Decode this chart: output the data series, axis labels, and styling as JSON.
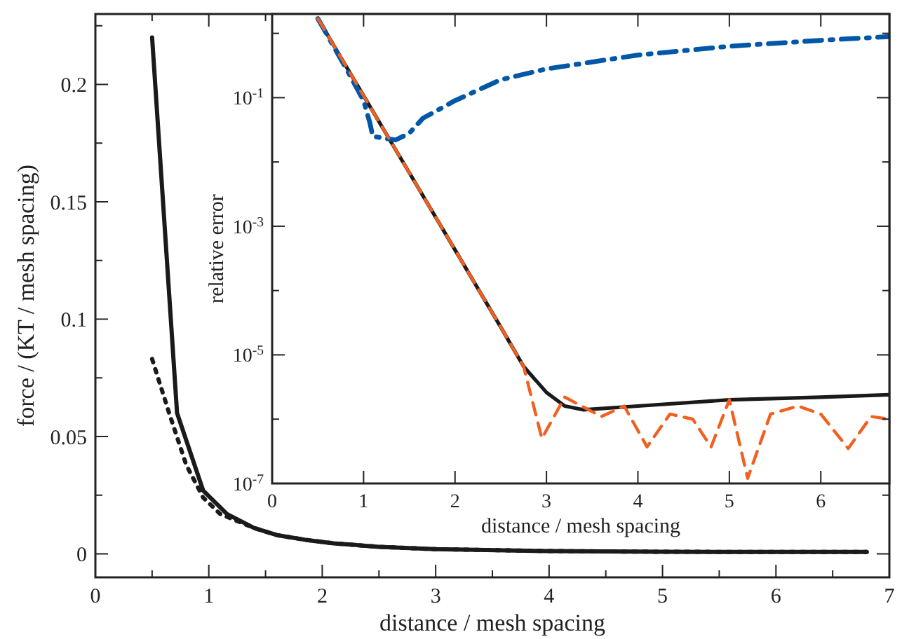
{
  "chart_data": [
    {
      "type": "line",
      "xlabel": "distance / mesh spacing",
      "ylabel": "force / (KT / mesh spacing)",
      "xlim": [
        0,
        7
      ],
      "ylim": [
        -0.01,
        0.23
      ],
      "xticks": [
        0,
        {
          "value": 0.5,
          "label": null
        },
        1,
        {
          "value": 1.5,
          "label": null
        },
        2,
        {
          "value": 2.5,
          "label": null
        },
        3,
        {
          "value": 3.5,
          "label": null
        },
        4,
        {
          "value": 4.5,
          "label": null
        },
        5,
        {
          "value": 5.5,
          "label": null
        },
        6,
        {
          "value": 6.5,
          "label": null
        },
        7
      ],
      "yticks": [
        0,
        {
          "value": 0.025,
          "label": null
        },
        0.05,
        {
          "value": 0.075,
          "label": null
        },
        0.1,
        {
          "value": 0.125,
          "label": null
        },
        0.15,
        {
          "value": 0.175,
          "label": null
        },
        0.2,
        {
          "value": 0.225,
          "label": null
        }
      ],
      "series": [
        {
          "color": "#1a1a1a",
          "line_style": "solid",
          "x": [
            0.5,
            0.72,
            0.95,
            1.16,
            1.4,
            1.6,
            1.85,
            2.1,
            2.5,
            3,
            4,
            5,
            6,
            6.8
          ],
          "values": [
            0.22,
            0.06,
            0.027,
            0.017,
            0.011,
            0.008,
            0.006,
            0.0045,
            0.003,
            0.002,
            0.0012,
            0.0009,
            0.0008,
            0.0008
          ]
        },
        {
          "color": "#1a1a1a",
          "line_style": "dotted",
          "x": [
            0.5,
            0.65,
            0.8,
            0.95,
            1.1,
            1.4,
            1.6,
            1.85,
            2.1,
            2.5,
            3,
            4,
            5,
            6,
            6.8
          ],
          "values": [
            0.083,
            0.06,
            0.038,
            0.024,
            0.017,
            0.011,
            0.008,
            0.006,
            0.0045,
            0.003,
            0.002,
            0.0012,
            0.0009,
            0.0008,
            0.0008
          ]
        }
      ]
    },
    {
      "type": "line",
      "xlabel": "distance / mesh spacing",
      "ylabel": "relative error",
      "log": "y",
      "xlim": [
        0,
        6.75
      ],
      "ylim": [
        1e-07,
        2
      ],
      "xticks": [
        0,
        1,
        2,
        3,
        4,
        5,
        6
      ],
      "yticks": [
        {
          "value": 1e-07,
          "label": "10$^{-7}$"
        },
        {
          "value": 1e-06,
          "label": null
        },
        {
          "value": 1e-05,
          "label": "10$^{-5}$"
        },
        {
          "value": 0.0001,
          "label": null
        },
        {
          "value": 0.001,
          "label": "10$^{-3}$"
        },
        {
          "value": 0.01,
          "label": null
        },
        {
          "value": 0.1,
          "label": "10$^{-1}$"
        },
        {
          "value": 1,
          "label": null
        }
      ],
      "series": [
        {
          "color": "#1a1a1a",
          "line_style": "solid",
          "x": [
            0.5,
            1,
            1.5,
            2,
            2.5,
            2.75,
            3,
            3.2,
            3.4,
            4,
            5,
            6,
            6.75
          ],
          "values": [
            1.7,
            0.107,
            0.0068,
            0.00043,
            2.7e-05,
            6.6e-06,
            2.6e-06,
            1.6e-06,
            1.4e-06,
            1.6e-06,
            2e-06,
            2.2e-06,
            2.4e-06
          ]
        },
        {
          "color": "#0057a8",
          "line_style": "dashdot",
          "x": [
            0.5,
            0.8,
            1.0,
            1.07,
            1.1,
            1.35,
            1.5,
            1.65,
            2,
            2.5,
            3,
            4,
            5,
            6,
            6.75
          ],
          "values": [
            1.7,
            0.3,
            0.09,
            0.04,
            0.025,
            0.022,
            0.028,
            0.048,
            0.09,
            0.19,
            0.28,
            0.46,
            0.63,
            0.78,
            0.89
          ]
        },
        {
          "color": "#f06020",
          "line_style": "dashed",
          "x": [
            0.5,
            1,
            1.5,
            2,
            2.5,
            2.75,
            2.95,
            3.2,
            3.6,
            3.85,
            4.1,
            4.35,
            4.6,
            4.8,
            5.0,
            5.2,
            5.45,
            5.75,
            6.0,
            6.3,
            6.55,
            6.75
          ],
          "values": [
            1.7,
            0.107,
            0.0068,
            0.00043,
            2.7e-05,
            6.6e-06,
            5e-07,
            2.2e-06,
            1.1e-06,
            1.6e-06,
            3.7e-07,
            1.2e-06,
            1e-06,
            3.7e-07,
            2e-06,
            1.2e-07,
            1.2e-06,
            1.6e-06,
            1.2e-06,
            3.5e-07,
            1.1e-06,
            1e-06
          ]
        }
      ]
    }
  ]
}
